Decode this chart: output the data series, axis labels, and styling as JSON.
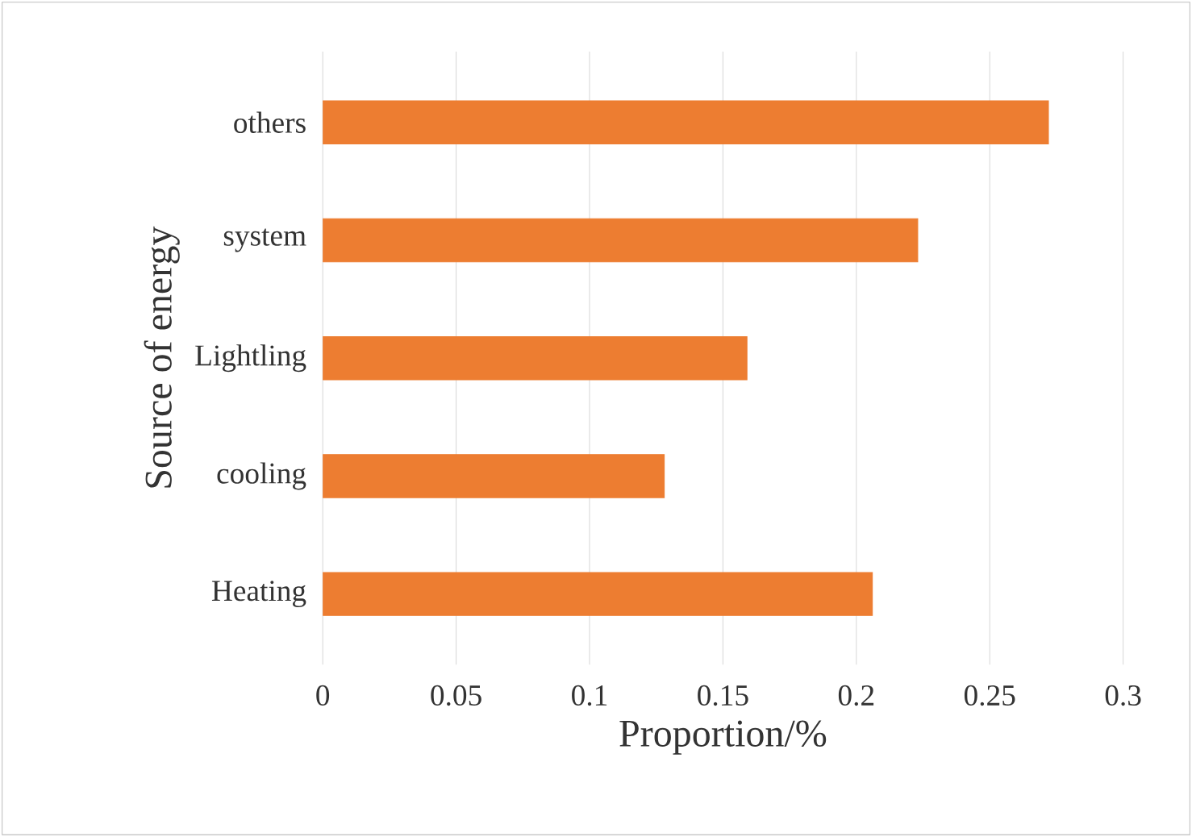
{
  "chart_data": {
    "type": "bar",
    "orientation": "horizontal",
    "xlabel": "Proportion/%",
    "ylabel": "Source of energy",
    "categories": [
      "others",
      "system",
      "Lightling",
      "cooling",
      "Heating"
    ],
    "values": [
      0.272,
      0.223,
      0.159,
      0.128,
      0.206
    ],
    "color": "#ed7d31",
    "xlim": [
      0,
      0.3
    ],
    "xticks": [
      0,
      0.05,
      0.1,
      0.15,
      0.2,
      0.25,
      0.3
    ],
    "grid": "x"
  }
}
